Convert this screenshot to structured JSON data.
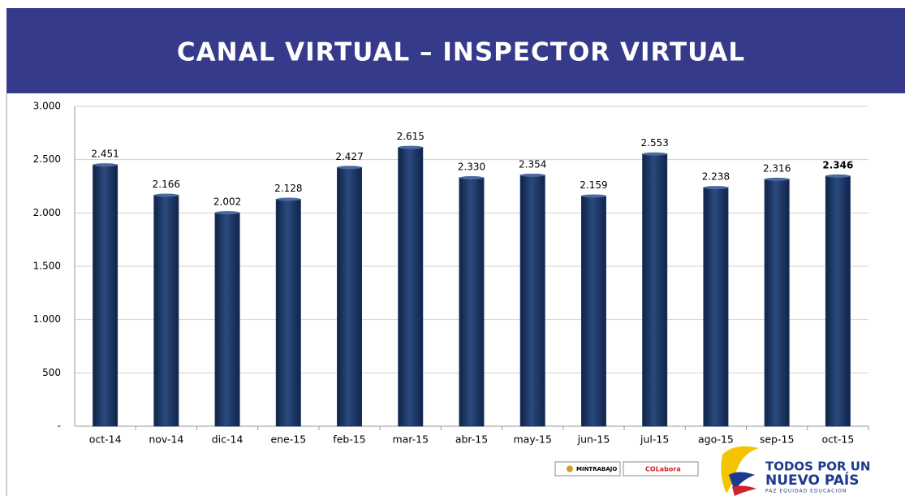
{
  "chart_data": {
    "type": "bar",
    "title": "CANAL VIRTUAL – INSPECTOR VIRTUAL",
    "categories": [
      "oct-14",
      "nov-14",
      "dic-14",
      "ene-15",
      "feb-15",
      "mar-15",
      "abr-15",
      "may-15",
      "jun-15",
      "jul-15",
      "ago-15",
      "sep-15",
      "oct-15"
    ],
    "values": [
      2451,
      2166,
      2002,
      2128,
      2427,
      2615,
      2330,
      2354,
      2159,
      2553,
      2238,
      2316,
      2346
    ],
    "value_labels": [
      "2.451",
      "2.166",
      "2.002",
      "2.128",
      "2.427",
      "2.615",
      "2.330",
      "2.354",
      "2.159",
      "2.553",
      "2.238",
      "2.316",
      "2.346"
    ],
    "color": "#1c3560",
    "ylim": [
      0,
      3000
    ],
    "yticks": [
      {
        "value": 0,
        "label": "-"
      },
      500,
      {
        "value": 1000,
        "label": "1.000"
      },
      {
        "value": 1500,
        "label": "1.500"
      },
      {
        "value": 2000,
        "label": "2.000"
      },
      {
        "value": 2500,
        "label": "2.500"
      },
      {
        "value": 3000,
        "label": "3.000"
      }
    ],
    "grid": true
  },
  "footer": {
    "logos": [
      "MINTRABAJO",
      "COLabora"
    ],
    "brand": [
      "TODOS POR UN",
      "NUEVO PAÍS",
      "PAZ  EQUIDAD  EDUCACION"
    ]
  }
}
